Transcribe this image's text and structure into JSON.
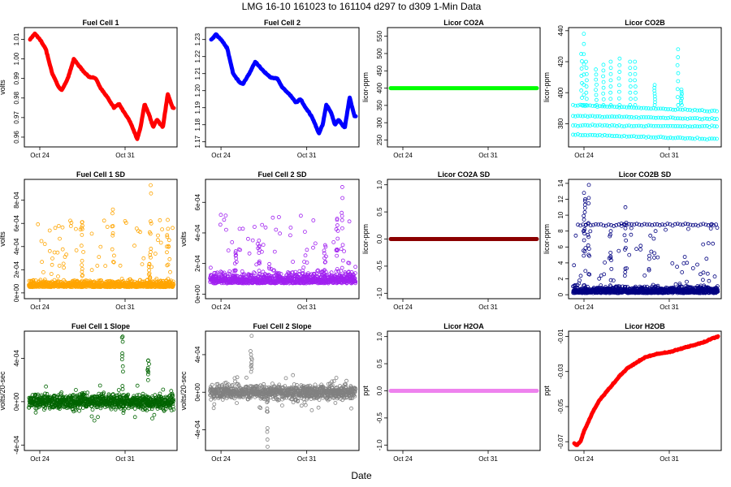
{
  "figure": {
    "title": "LMG   16-10     161023 to 161104     d297 to d309   1-Min Data",
    "xlabel": "Date"
  },
  "chart_data": [
    {
      "id": "fc1",
      "type": "line",
      "title": "Fuel Cell 1",
      "ylabel": "volts",
      "color": "#ff0000",
      "style": "thick",
      "ylim": [
        0.955,
        1.016
      ],
      "yticks": [
        0.96,
        0.97,
        0.98,
        0.99,
        1.0,
        1.01
      ],
      "ytick_labels": [
        "0.96",
        "0.97",
        "0.98",
        "0.99",
        "1.00",
        "1.01"
      ],
      "xlim": [
        0,
        12
      ],
      "xticks": [
        1,
        8
      ],
      "xtick_labels": [
        "Oct 24",
        "Oct 31"
      ],
      "x": [
        0.2,
        0.6,
        1.0,
        1.5,
        2.0,
        2.5,
        2.8,
        3.3,
        3.8,
        4.4,
        5.0,
        5.6,
        6.0,
        6.7,
        7.1,
        7.5,
        7.9,
        8.4,
        9.0,
        9.3,
        9.6,
        10.0,
        10.3,
        10.6,
        11.1,
        11.5,
        11.9,
        12.0
      ],
      "values": [
        1.01,
        1.013,
        1.01,
        1.005,
        0.993,
        0.986,
        0.984,
        0.99,
        1.0,
        0.995,
        0.991,
        0.99,
        0.985,
        0.979,
        0.975,
        0.977,
        0.973,
        0.968,
        0.959,
        0.966,
        0.977,
        0.971,
        0.965,
        0.969,
        0.965,
        0.982,
        0.975,
        0.975
      ]
    },
    {
      "id": "fc2",
      "type": "line",
      "title": "Fuel Cell 2",
      "ylabel": "",
      "color": "#0000ff",
      "style": "thick",
      "ylim": [
        1.167,
        1.237
      ],
      "yticks": [
        1.17,
        1.18,
        1.19,
        1.2,
        1.21,
        1.22,
        1.23
      ],
      "ytick_labels": [
        "1.17",
        "1.18",
        "1.19",
        "1.20",
        "1.21",
        "1.22",
        "1.23"
      ],
      "xlim": [
        0,
        12
      ],
      "xticks": [
        1,
        8
      ],
      "xtick_labels": [
        "Oct 24",
        "Oct 31"
      ],
      "x": [
        0.2,
        0.6,
        1.0,
        1.5,
        2.0,
        2.5,
        2.8,
        3.3,
        3.8,
        4.4,
        5.0,
        5.6,
        6.0,
        6.7,
        7.1,
        7.5,
        7.9,
        8.4,
        9.0,
        9.3,
        9.6,
        10.0,
        10.3,
        10.6,
        11.1,
        11.5,
        11.9,
        12.0
      ],
      "values": [
        1.23,
        1.233,
        1.23,
        1.225,
        1.21,
        1.205,
        1.204,
        1.21,
        1.217,
        1.212,
        1.208,
        1.207,
        1.202,
        1.197,
        1.193,
        1.195,
        1.19,
        1.185,
        1.175,
        1.18,
        1.192,
        1.187,
        1.18,
        1.183,
        1.178,
        1.196,
        1.185,
        1.185
      ]
    },
    {
      "id": "co2a",
      "type": "line",
      "title": "Licor CO2A",
      "ylabel": "licor-ppm",
      "color": "#00ff00",
      "style": "thick",
      "ylim": [
        230,
        575
      ],
      "yticks": [
        250,
        300,
        350,
        400,
        450,
        500,
        550
      ],
      "ytick_labels": [
        "250",
        "300",
        "350",
        "400",
        "450",
        "500",
        "550"
      ],
      "xlim": [
        0,
        12
      ],
      "xticks": [
        1,
        8
      ],
      "xtick_labels": [
        "Oct 24",
        "Oct 31"
      ],
      "x": [
        0,
        12
      ],
      "values": [
        400,
        400
      ]
    },
    {
      "id": "co2b",
      "type": "scatter",
      "title": "Licor CO2B",
      "ylabel": "licor-ppm",
      "color": "#00ffff",
      "style": "points",
      "ylim": [
        365,
        442
      ],
      "yticks": [
        380,
        400,
        420,
        440
      ],
      "ytick_labels": [
        "380",
        "400",
        "420",
        "440"
      ],
      "xlim": [
        0,
        12
      ],
      "xticks": [
        1,
        8
      ],
      "xtick_labels": [
        "Oct 24",
        "Oct 31"
      ],
      "bands": [
        [
          392,
          388
        ],
        [
          385,
          383
        ],
        [
          379,
          378
        ],
        [
          373,
          370
        ]
      ],
      "spikes": [
        [
          0.8,
          425
        ],
        [
          1.0,
          438
        ],
        [
          1.2,
          420
        ],
        [
          2.0,
          415
        ],
        [
          2.6,
          418
        ],
        [
          3.2,
          420
        ],
        [
          3.9,
          422
        ],
        [
          4.8,
          420
        ],
        [
          5.2,
          420
        ],
        [
          6.8,
          405
        ],
        [
          8.7,
          428
        ],
        [
          9.0,
          402
        ]
      ]
    },
    {
      "id": "fc1sd",
      "type": "scatter",
      "title": "Fuel Cell 1 SD",
      "ylabel": "volts",
      "color": "#ffa500",
      "style": "noise",
      "ylim": [
        -5e-05,
        0.00098
      ],
      "yticks": [
        0,
        0.0002,
        0.0004,
        0.0006,
        0.0008
      ],
      "ytick_labels": [
        "0e+00",
        "2e-04",
        "4e-04",
        "6e-04",
        "8e-04"
      ],
      "xlim": [
        0,
        12
      ],
      "xticks": [
        1,
        8
      ],
      "xtick_labels": [
        "Oct 24",
        "Oct 31"
      ],
      "base": 5e-05,
      "spread": 0.0001,
      "peaks": [
        [
          10.0,
          0.00025
        ],
        [
          10.1,
          0.00093
        ],
        [
          11.5,
          0.00063
        ],
        [
          7.0,
          0.00072
        ],
        [
          4.5,
          0.00058
        ]
      ]
    },
    {
      "id": "fc2sd",
      "type": "scatter",
      "title": "Fuel Cell 2 SD",
      "ylabel": "volts",
      "color": "#a020f0",
      "style": "noise",
      "ylim": [
        -3e-05,
        0.00075
      ],
      "yticks": [
        0,
        0.0002,
        0.0004,
        0.0006
      ],
      "ytick_labels": [
        "0e+00",
        "2e-04",
        "4e-04",
        "6e-04"
      ],
      "xlim": [
        0,
        12
      ],
      "xticks": [
        1,
        8
      ],
      "xtick_labels": [
        "Oct 24",
        "Oct 31"
      ],
      "base": 7e-05,
      "spread": 0.00013,
      "peaks": [
        [
          2.2,
          0.00028
        ],
        [
          4.1,
          0.00035
        ],
        [
          9.5,
          0.00032
        ],
        [
          10.5,
          0.00045
        ],
        [
          10.9,
          0.0007
        ]
      ]
    },
    {
      "id": "co2asd",
      "type": "line",
      "title": "Licor CO2A SD",
      "ylabel": "licor-ppm",
      "color": "#8b0000",
      "style": "thick",
      "ylim": [
        -1.1,
        1.1
      ],
      "yticks": [
        -1.0,
        -0.5,
        0.0,
        0.5,
        1.0
      ],
      "ytick_labels": [
        "-1.0",
        "-0.5",
        "0.0",
        "0.5",
        "1.0"
      ],
      "xlim": [
        0,
        12
      ],
      "xticks": [
        1,
        8
      ],
      "xtick_labels": [
        "Oct 24",
        "Oct 31"
      ],
      "x": [
        0,
        12
      ],
      "values": [
        0,
        0
      ]
    },
    {
      "id": "co2bsd",
      "type": "scatter",
      "title": "Licor CO2B SD",
      "ylabel": "licor-ppm",
      "color": "#000080",
      "style": "noise",
      "ylim": [
        -0.5,
        14.5
      ],
      "yticks": [
        0,
        2,
        4,
        6,
        8,
        10,
        12,
        14
      ],
      "ytick_labels": [
        "0",
        "2",
        "4",
        "6",
        "8",
        "10",
        "12",
        "14"
      ],
      "xlim": [
        0,
        12
      ],
      "xticks": [
        1,
        8
      ],
      "xtick_labels": [
        "Oct 24",
        "Oct 31"
      ],
      "base": 0.2,
      "spread": 1.5,
      "band": 8.8,
      "peaks": [
        [
          1.0,
          12.8
        ],
        [
          1.1,
          12.0
        ],
        [
          1.4,
          13.8
        ],
        [
          4.4,
          11.0
        ],
        [
          3.2,
          8.0
        ]
      ]
    },
    {
      "id": "fc1sl",
      "type": "scatter",
      "title": "Fuel Cell 1 Slope",
      "ylabel": "volts/20-sec",
      "color": "#006400",
      "style": "noise",
      "ylim": [
        -0.00045,
        0.00065
      ],
      "yticks": [
        -0.0004,
        0,
        0.0004
      ],
      "ytick_labels": [
        "-4e-04",
        "0e+00",
        "4e-04"
      ],
      "xlim": [
        0,
        12
      ],
      "xticks": [
        1,
        8
      ],
      "xtick_labels": [
        "Oct 24",
        "Oct 31"
      ],
      "base": 0,
      "spread": 0.00012,
      "symmetric": true,
      "peaks": [
        [
          7.8,
          0.0006
        ],
        [
          9.9,
          0.00038
        ]
      ]
    },
    {
      "id": "fc2sl",
      "type": "scatter",
      "title": "Fuel Cell 2 Slope",
      "ylabel": "volts/20-sec",
      "color": "#808080",
      "style": "noise",
      "ylim": [
        -0.00062,
        0.00065
      ],
      "yticks": [
        -0.0004,
        0,
        0.0004
      ],
      "ytick_labels": [
        "-4e-04",
        "0e+00",
        "4e-04"
      ],
      "xlim": [
        0,
        12
      ],
      "xticks": [
        1,
        8
      ],
      "xtick_labels": [
        "Oct 24",
        "Oct 31"
      ],
      "base": 0,
      "spread": 0.00014,
      "symmetric": true,
      "peaks": [
        [
          3.5,
          0.0006
        ],
        [
          4.8,
          -0.00058
        ]
      ]
    },
    {
      "id": "h2oa",
      "type": "line",
      "title": "Licor H2OA",
      "ylabel": "ppt",
      "color": "#ee82ee",
      "style": "thick",
      "ylim": [
        -1.1,
        1.1
      ],
      "yticks": [
        -1.0,
        -0.5,
        0.0,
        0.5,
        1.0
      ],
      "ytick_labels": [
        "-1.0",
        "-0.5",
        "0.0",
        "0.5",
        "1.0"
      ],
      "xlim": [
        0,
        12
      ],
      "xticks": [
        1,
        8
      ],
      "xtick_labels": [
        "Oct 24",
        "Oct 31"
      ],
      "x": [
        0,
        12
      ],
      "values": [
        0,
        0
      ]
    },
    {
      "id": "h2ob",
      "type": "line",
      "title": "Licor H2OB",
      "ylabel": "ppt",
      "color": "#ff0000",
      "style": "thick",
      "ylim": [
        -0.075,
        -0.007
      ],
      "yticks": [
        -0.07,
        -0.05,
        -0.03,
        -0.01
      ],
      "ytick_labels": [
        "-0.07",
        "-0.05",
        "-0.03",
        "-0.01"
      ],
      "xlim": [
        0,
        12
      ],
      "xticks": [
        1,
        8
      ],
      "xtick_labels": [
        "Oct 24",
        "Oct 31"
      ],
      "x": [
        0.2,
        0.4,
        0.7,
        1.0,
        1.4,
        1.8,
        2.3,
        2.8,
        3.4,
        4.0,
        4.6,
        5.3,
        6.0,
        7.0,
        8.0,
        9.0,
        10.0,
        11.0,
        11.6,
        12.0
      ],
      "values": [
        -0.071,
        -0.072,
        -0.07,
        -0.064,
        -0.058,
        -0.052,
        -0.046,
        -0.042,
        -0.037,
        -0.032,
        -0.028,
        -0.025,
        -0.022,
        -0.02,
        -0.019,
        -0.017,
        -0.015,
        -0.013,
        -0.011,
        -0.01
      ]
    }
  ]
}
